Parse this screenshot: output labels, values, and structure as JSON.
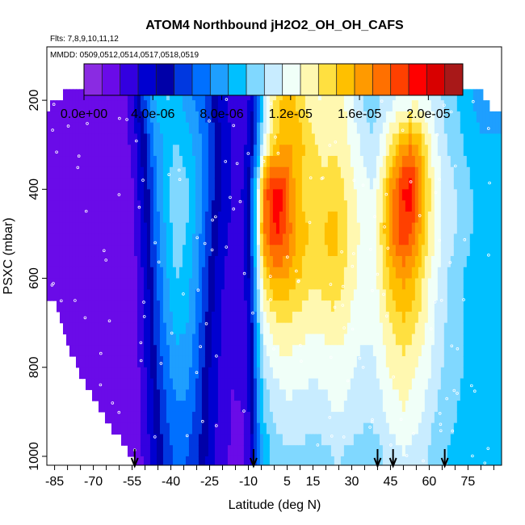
{
  "chart_data": {
    "type": "heatmap",
    "title": "ATOM4 Northbound jH2O2_OH_OH_CAFS",
    "subtitle_flights": "Flts: 7,8,9,10,11,12",
    "subtitle_dates": "MMDD: 0509,0512,0514,0517,0518,0519",
    "xlabel": "Latitude (deg N)",
    "ylabel": "PSXC (mbar)",
    "xlim": [
      -88,
      88
    ],
    "ylim": [
      1020,
      80
    ],
    "x_ticks": [
      -85,
      -80,
      -75,
      -70,
      -65,
      -60,
      -55,
      -50,
      -45,
      -40,
      -35,
      -30,
      -25,
      -20,
      -15,
      -10,
      -5,
      0,
      5,
      10,
      15,
      20,
      25,
      30,
      35,
      40,
      45,
      50,
      55,
      60,
      65,
      70,
      75,
      80,
      85
    ],
    "x_tick_labels": [
      {
        "value": -85,
        "label": "-85"
      },
      {
        "value": -70,
        "label": "-70"
      },
      {
        "value": -55,
        "label": "-55"
      },
      {
        "value": -40,
        "label": "-40"
      },
      {
        "value": -25,
        "label": "-25"
      },
      {
        "value": -10,
        "label": "-10"
      },
      {
        "value": 5,
        "label": "5"
      },
      {
        "value": 15,
        "label": "15"
      },
      {
        "value": 30,
        "label": "30"
      },
      {
        "value": 45,
        "label": "45"
      },
      {
        "value": 60,
        "label": "60"
      },
      {
        "value": 75,
        "label": "75"
      }
    ],
    "y_ticks": [
      200,
      400,
      600,
      800,
      1000
    ],
    "y_tick_labels": [
      "200",
      "400",
      "600",
      "800",
      "1000"
    ],
    "colorbar": {
      "min": 0,
      "max": 2.2e-05,
      "colors": [
        "#8a2be2",
        "#6a0be8",
        "#3300e0",
        "#0000d0",
        "#0000a8",
        "#0038e0",
        "#0070ff",
        "#1e9fff",
        "#00c0ff",
        "#80d8ff",
        "#c8ecff",
        "#f0fff8",
        "#fff8b0",
        "#ffe040",
        "#ffc000",
        "#ff9a00",
        "#ff7000",
        "#ff4000",
        "#ff0000",
        "#d80000",
        "#a81818"
      ],
      "tick_values": [
        0,
        4e-06,
        8e-06,
        1.2e-05,
        1.6e-05,
        2e-05
      ],
      "tick_labels": [
        "0.0e+00",
        "4.0e-06",
        "8.0e-06",
        "1.2e-05",
        "1.6e-05",
        "2.0e-05"
      ]
    },
    "profile_arrows_lat": [
      -54,
      -8,
      40,
      46,
      66
    ],
    "bottom_pressure_by_lat": [
      [
        -85,
        650
      ],
      [
        -80,
        750
      ],
      [
        -75,
        820
      ],
      [
        -70,
        870
      ],
      [
        -65,
        920
      ],
      [
        -60,
        960
      ],
      [
        -55,
        1010
      ],
      [
        -50,
        1020
      ],
      [
        88,
        1020
      ]
    ],
    "top_pressure_by_lat": [
      [
        -88,
        220
      ],
      [
        -80,
        180
      ],
      [
        76,
        180
      ],
      [
        82,
        190
      ],
      [
        84,
        215
      ],
      [
        88,
        215
      ]
    ],
    "lat_nodes": [
      -88,
      -70,
      -62,
      -57,
      -54,
      -52,
      -49,
      -46,
      -42,
      -38,
      -34,
      -30,
      -27,
      -24,
      -20,
      -16,
      -12,
      -10,
      -8,
      -6,
      -4,
      -1,
      2,
      5,
      8,
      11,
      14,
      17,
      20,
      23,
      26,
      29,
      32,
      35,
      38,
      41,
      44,
      47,
      50,
      53,
      56,
      59,
      62,
      65,
      67,
      70,
      73,
      76,
      80,
      84,
      88
    ],
    "pressure_levels": [
      200,
      300,
      400,
      500,
      600,
      700,
      800,
      900,
      1000
    ],
    "grid_values_e6": [
      [
        1.2,
        1.2,
        1.3,
        2.0,
        3.3,
        5.0,
        7.0,
        8.5,
        9.5,
        9.2,
        8.0,
        7.0,
        6.2,
        5.0,
        3.5,
        2.6,
        2.2,
        3.0,
        4.5,
        7.0,
        10.5,
        13.0,
        14.5,
        15.0,
        14.8,
        14.0,
        13.0,
        12.5,
        12.8,
        13.5,
        13.0,
        12.0,
        11.0,
        10.3,
        10.0,
        10.5,
        11.0,
        11.5,
        11.8,
        12.0,
        12.2,
        11.8,
        11.0,
        10.5,
        10.0,
        9.5,
        9.0,
        8.5,
        8.0,
        8.0,
        8.0
      ],
      [
        1.2,
        1.2,
        1.3,
        1.8,
        2.8,
        4.0,
        5.5,
        7.5,
        8.8,
        9.5,
        9.0,
        8.0,
        7.0,
        5.8,
        4.0,
        3.0,
        2.8,
        3.5,
        5.5,
        8.0,
        11.5,
        14.0,
        15.2,
        15.8,
        15.5,
        14.8,
        14.0,
        13.5,
        13.2,
        13.5,
        13.2,
        12.5,
        11.8,
        11.0,
        10.5,
        11.5,
        13.0,
        14.5,
        16.0,
        16.5,
        15.5,
        13.5,
        12.0,
        11.0,
        10.5,
        10.0,
        9.5,
        9.0,
        8.5,
        8.5,
        8.5
      ],
      [
        1.2,
        1.2,
        1.3,
        1.5,
        2.2,
        3.5,
        5.0,
        7.0,
        9.0,
        10.5,
        9.8,
        8.5,
        7.0,
        5.5,
        4.0,
        3.0,
        3.2,
        4.5,
        7.5,
        12.0,
        16.5,
        19.0,
        19.5,
        17.5,
        15.5,
        14.5,
        14.0,
        14.0,
        14.2,
        14.5,
        14.0,
        13.2,
        12.5,
        12.0,
        11.5,
        13.0,
        15.5,
        17.5,
        19.0,
        19.5,
        17.0,
        14.5,
        12.5,
        11.5,
        11.0,
        10.5,
        10.0,
        9.5,
        9.0,
        9.0,
        9.0
      ],
      [
        1.2,
        1.2,
        1.3,
        1.4,
        2.0,
        3.0,
        4.5,
        6.5,
        8.5,
        10.0,
        9.5,
        8.0,
        6.5,
        5.0,
        3.5,
        2.8,
        3.0,
        4.5,
        7.5,
        12.0,
        16.8,
        18.5,
        19.0,
        17.5,
        16.0,
        15.0,
        14.5,
        14.5,
        14.8,
        15.0,
        14.5,
        13.5,
        12.8,
        12.2,
        12.0,
        13.5,
        15.8,
        17.5,
        18.5,
        18.0,
        16.0,
        14.0,
        12.5,
        11.5,
        11.0,
        10.5,
        10.0,
        9.5,
        9.0,
        9.0,
        9.0
      ],
      [
        1.2,
        1.2,
        1.3,
        1.4,
        1.8,
        2.7,
        4.0,
        6.0,
        8.0,
        9.5,
        9.0,
        7.5,
        6.0,
        4.5,
        3.2,
        2.5,
        2.8,
        4.0,
        7.0,
        11.0,
        14.0,
        15.5,
        16.0,
        15.8,
        15.0,
        14.5,
        14.0,
        14.0,
        14.2,
        14.5,
        14.0,
        13.2,
        12.5,
        12.0,
        12.0,
        13.0,
        14.5,
        15.5,
        16.0,
        15.5,
        14.5,
        13.0,
        12.0,
        11.0,
        10.5,
        10.0,
        9.5,
        9.0,
        8.8,
        8.8,
        8.8
      ],
      [
        1.2,
        1.2,
        1.3,
        1.4,
        1.7,
        2.5,
        3.8,
        5.5,
        7.5,
        8.8,
        8.5,
        7.0,
        5.5,
        4.2,
        3.0,
        2.3,
        2.5,
        3.5,
        6.0,
        9.5,
        12.0,
        13.0,
        13.5,
        13.5,
        13.2,
        13.0,
        12.8,
        12.8,
        13.0,
        13.2,
        13.0,
        12.5,
        12.0,
        11.8,
        11.8,
        12.5,
        13.5,
        14.0,
        14.5,
        14.2,
        13.5,
        12.5,
        11.5,
        10.8,
        10.3,
        10.0,
        9.5,
        9.0,
        8.8,
        8.8,
        8.8
      ],
      [
        1.2,
        1.2,
        1.3,
        1.4,
        1.6,
        2.2,
        3.5,
        5.0,
        6.8,
        8.0,
        7.8,
        6.5,
        5.0,
        3.8,
        2.8,
        2.2,
        2.3,
        3.2,
        5.5,
        8.5,
        10.5,
        11.5,
        12.0,
        12.2,
        12.0,
        12.0,
        11.8,
        11.8,
        12.0,
        12.2,
        12.0,
        11.8,
        11.5,
        11.2,
        11.2,
        11.8,
        12.5,
        13.0,
        13.2,
        13.0,
        12.5,
        12.0,
        11.2,
        10.5,
        10.0,
        9.8,
        9.5,
        9.0,
        8.8,
        8.8,
        8.8
      ],
      [
        1.2,
        1.2,
        1.3,
        1.4,
        1.6,
        2.0,
        3.2,
        4.5,
        6.2,
        7.2,
        7.0,
        6.0,
        4.8,
        3.6,
        2.6,
        2.0,
        2.1,
        3.0,
        5.0,
        7.8,
        9.5,
        10.5,
        11.0,
        11.2,
        11.2,
        11.2,
        11.0,
        11.0,
        11.2,
        11.5,
        11.5,
        11.2,
        11.0,
        10.8,
        10.8,
        11.2,
        11.8,
        12.2,
        12.5,
        12.2,
        11.8,
        11.2,
        10.5,
        10.0,
        9.8,
        9.5,
        9.2,
        9.0,
        8.8,
        8.8,
        8.8
      ],
      [
        1.2,
        1.2,
        1.3,
        1.4,
        1.5,
        1.8,
        2.8,
        4.0,
        5.5,
        6.5,
        6.3,
        5.5,
        4.5,
        3.4,
        2.4,
        1.9,
        2.0,
        2.8,
        4.5,
        7.0,
        8.5,
        9.5,
        10.0,
        10.2,
        10.2,
        10.2,
        10.0,
        10.0,
        10.2,
        10.5,
        10.5,
        10.2,
        10.0,
        9.8,
        9.8,
        10.2,
        10.8,
        11.2,
        11.5,
        11.2,
        10.8,
        10.5,
        10.0,
        9.6,
        9.4,
        9.2,
        9.0,
        8.8,
        8.8,
        8.8,
        8.8
      ]
    ]
  }
}
